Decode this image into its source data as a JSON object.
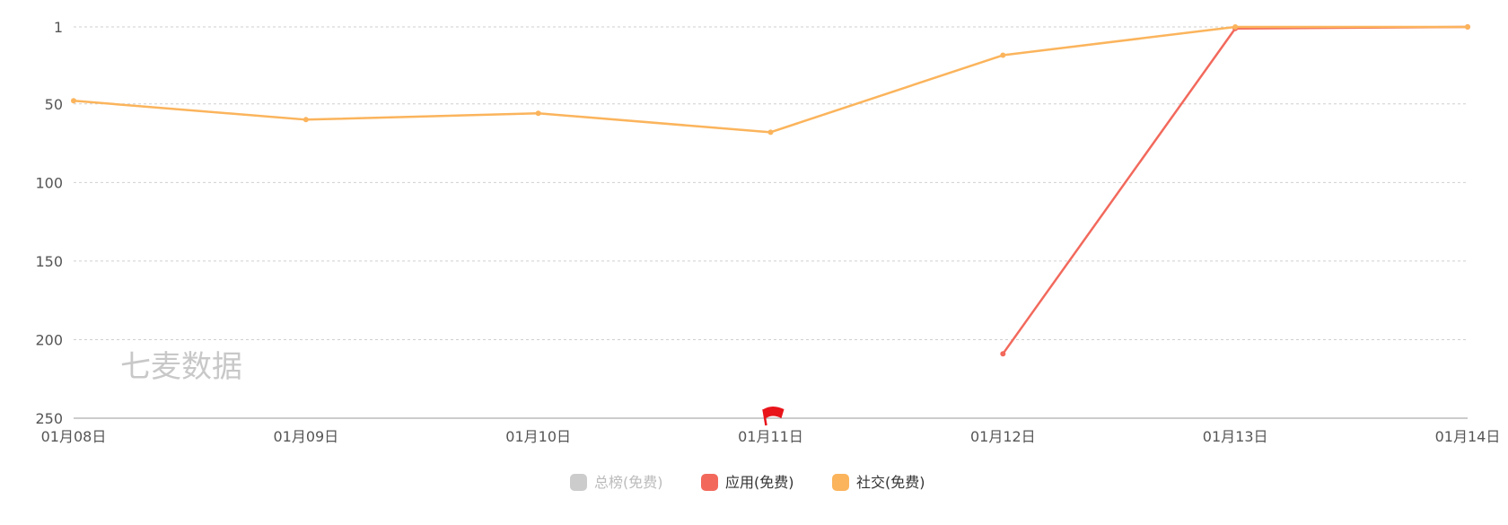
{
  "chart_data": {
    "type": "line",
    "title": "",
    "xlabel": "",
    "ylabel": "",
    "y_inverted": true,
    "ylim": [
      1,
      250
    ],
    "yticks": [
      1,
      50,
      100,
      150,
      200,
      250
    ],
    "grid": true,
    "legend_position": "bottom-center",
    "categories": [
      "01月08日",
      "01月09日",
      "01月10日",
      "01月11日",
      "01月12日",
      "01月13日",
      "01月14日"
    ],
    "series": [
      {
        "name": "总榜(免费)",
        "color": "#cccccc",
        "visible": false,
        "values": [
          null,
          null,
          null,
          null,
          null,
          null,
          null
        ]
      },
      {
        "name": "应用(免费)",
        "color": "#f2695c",
        "visible": true,
        "values": [
          null,
          null,
          null,
          null,
          209,
          2,
          1
        ]
      },
      {
        "name": "社交(免费)",
        "color": "#fbb45c",
        "visible": true,
        "values": [
          48,
          60,
          56,
          68,
          19,
          1,
          1
        ]
      }
    ],
    "flag_marker": {
      "category": "01月11日",
      "icon": "red-flag-icon",
      "color": "#e8141a"
    },
    "watermark": "七麦数据"
  }
}
